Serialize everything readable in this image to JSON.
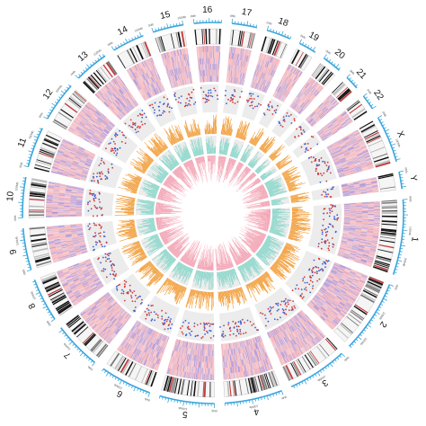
{
  "figure": {
    "type": "circos-genome-plot",
    "chromosomes": [
      "1",
      "2",
      "3",
      "4",
      "5",
      "6",
      "7",
      "8",
      "9",
      "10",
      "11",
      "12",
      "13",
      "14",
      "15",
      "16",
      "17",
      "18",
      "19",
      "20",
      "21",
      "22",
      "X",
      "Y"
    ],
    "sizes_mb": [
      249,
      242,
      198,
      190,
      181,
      171,
      159,
      145,
      138,
      134,
      135,
      133,
      114,
      107,
      102,
      90,
      83,
      80,
      59,
      64,
      47,
      51,
      156,
      57
    ],
    "scale_labels": [
      "0Mb",
      "100Mb",
      "200Mb"
    ],
    "track_names": [
      "ideogram",
      "heatmap",
      "scatter",
      "histogram-orange",
      "area-teal",
      "area-pink"
    ],
    "colors": {
      "axis_blue": "#3aa6dd",
      "heat_pink": "#f4a7b0",
      "heat_purple": "#9a86d8",
      "scatter_red": "#d23a3a",
      "scatter_blue": "#3a5ed2",
      "hist_orange": "#f0962a",
      "area_teal": "#8fd8cc",
      "area_pink": "#f2a0b1",
      "track_bg": "#ececec",
      "label": "#111111"
    }
  }
}
